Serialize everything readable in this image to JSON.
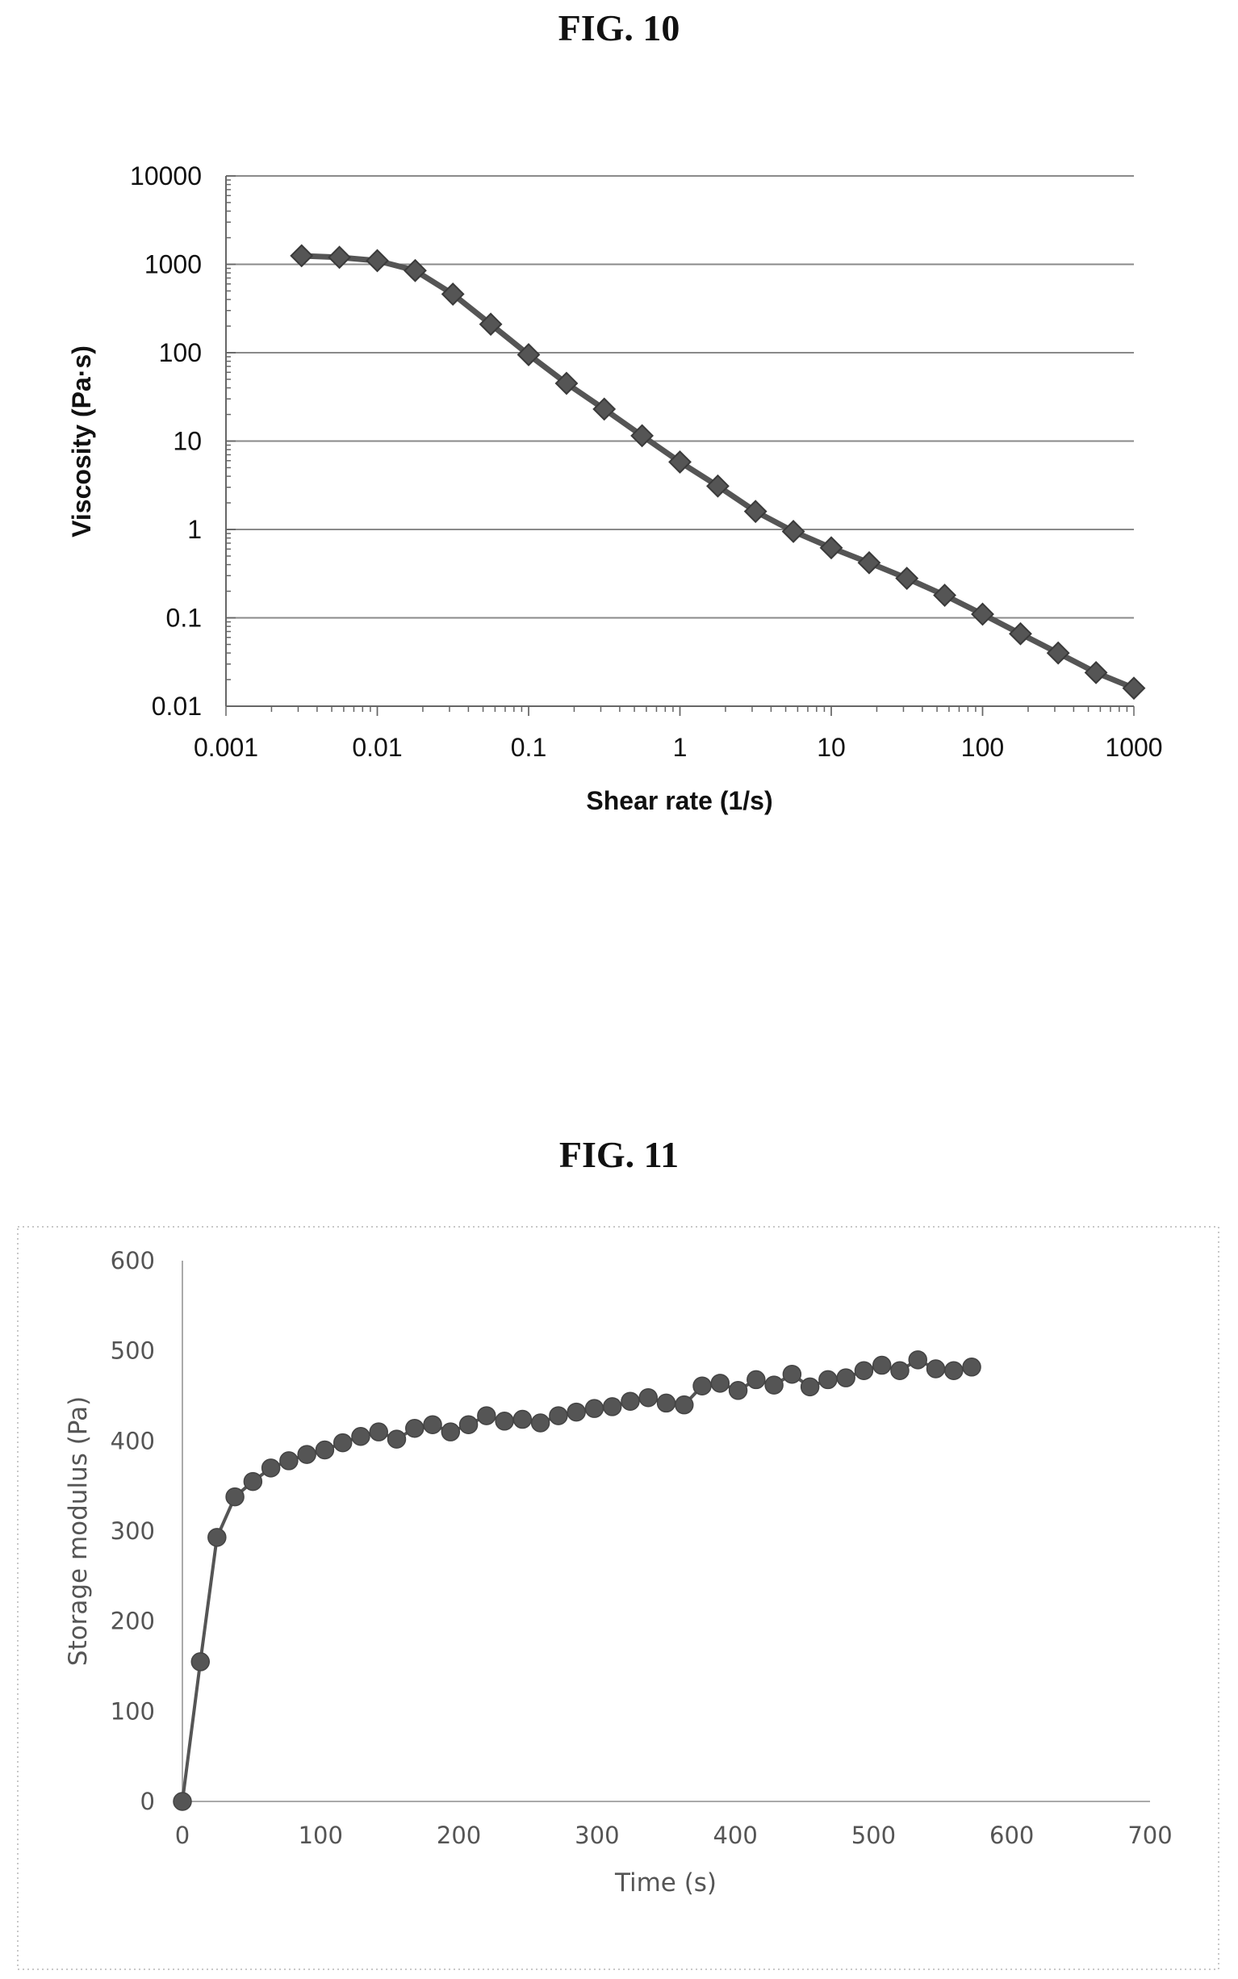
{
  "chart_data": [
    {
      "type": "line",
      "title": "FIG. 10",
      "xlabel": "Shear rate (1/s)",
      "ylabel": "Viscosity (Pa·s)",
      "x_scale": "log",
      "y_scale": "log",
      "xlim": [
        0.001,
        1000
      ],
      "ylim": [
        0.01,
        10000
      ],
      "x_ticks": [
        "0.001",
        "0.01",
        "0.1",
        "1",
        "10",
        "100",
        "1000"
      ],
      "y_ticks": [
        "0.01",
        "0.1",
        "1",
        "10",
        "100",
        "1000",
        "10000"
      ],
      "grid": "horizontal",
      "marker": "diamond",
      "series": [
        {
          "x": [
            0.00316,
            0.00562,
            0.01,
            0.0178,
            0.0316,
            0.0562,
            0.1,
            0.178,
            0.316,
            0.562,
            1,
            1.78,
            3.16,
            5.62,
            10,
            17.8,
            31.6,
            56.2,
            100,
            178,
            316,
            562,
            1000
          ],
          "y": [
            1250,
            1200,
            1100,
            850,
            460,
            210,
            95,
            45,
            23,
            11.5,
            5.8,
            3.1,
            1.6,
            0.95,
            0.62,
            0.42,
            0.28,
            0.18,
            0.11,
            0.066,
            0.04,
            0.024,
            0.016
          ]
        }
      ],
      "color": "#555555"
    },
    {
      "type": "line",
      "title": "FIG. 11",
      "xlabel": "Time (s)",
      "ylabel": "Storage modulus (Pa)",
      "xlim": [
        0,
        700
      ],
      "ylim": [
        0,
        600
      ],
      "x_ticks": [
        "0",
        "100",
        "200",
        "300",
        "400",
        "500",
        "600",
        "700"
      ],
      "y_ticks": [
        "0",
        "100",
        "200",
        "300",
        "400",
        "500",
        "600"
      ],
      "grid": "none",
      "marker": "circle",
      "series": [
        {
          "x": [
            0,
            13,
            25,
            38,
            51,
            64,
            77,
            90,
            103,
            116,
            129,
            142,
            155,
            168,
            181,
            194,
            207,
            220,
            233,
            246,
            259,
            272,
            285,
            298,
            311,
            324,
            337,
            350,
            363,
            376,
            389,
            402,
            415,
            428,
            441,
            454,
            467,
            480,
            493,
            506,
            519,
            532,
            545,
            558,
            571
          ],
          "y": [
            0,
            155,
            293,
            338,
            355,
            370,
            378,
            385,
            390,
            398,
            405,
            410,
            402,
            414,
            418,
            410,
            418,
            428,
            422,
            424,
            420,
            428,
            432,
            436,
            438,
            444,
            448,
            442,
            440,
            461,
            464,
            456,
            468,
            462,
            474,
            460,
            468,
            470,
            478,
            484,
            478,
            490,
            480,
            478,
            482
          ]
        }
      ],
      "color": "#555555"
    }
  ]
}
